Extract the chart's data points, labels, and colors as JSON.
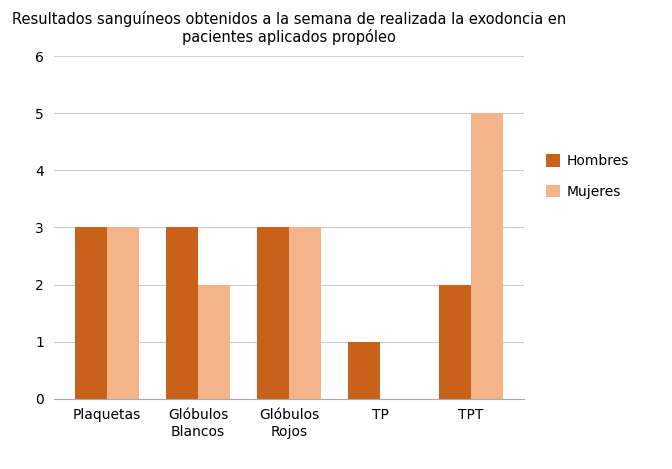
{
  "title": "Resultados sanguíneos obtenidos a la semana de realizada la exodoncia en\npacientes aplicados propóleo",
  "categories": [
    "Plaquetas",
    "Glóbulos\nBlancos",
    "Glóbulos\nRojos",
    "TP",
    "TPT"
  ],
  "hombres": [
    3,
    3,
    3,
    1,
    2
  ],
  "mujeres": [
    3,
    2,
    3,
    0,
    5
  ],
  "color_hombres": "#c8611a",
  "color_mujeres": "#f4b48a",
  "legend_labels": [
    "Hombres",
    "Mujeres"
  ],
  "ylim": [
    0,
    6
  ],
  "yticks": [
    0,
    1,
    2,
    3,
    4,
    5,
    6
  ],
  "bar_width": 0.35,
  "background_color": "#ffffff",
  "title_fontsize": 10.5,
  "tick_fontsize": 10,
  "legend_fontsize": 10,
  "grid_color": "#cccccc",
  "spine_color": "#aaaaaa"
}
